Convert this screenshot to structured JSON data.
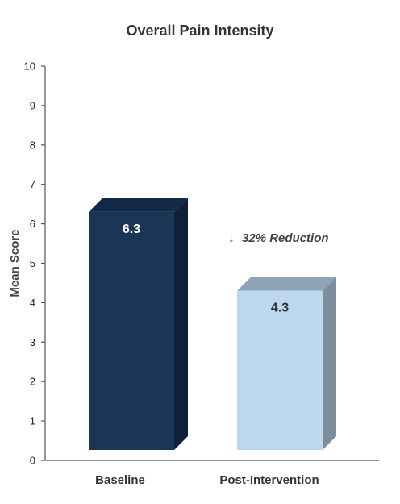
{
  "chart_data": {
    "type": "bar",
    "title": "Overall Pain Intensity",
    "xlabel": "",
    "ylabel": "Mean Score",
    "ylim": [
      0,
      10
    ],
    "yticks": [
      0,
      1,
      2,
      3,
      4,
      5,
      6,
      7,
      8,
      9,
      10
    ],
    "categories": [
      "Baseline",
      "Post-Intervention"
    ],
    "values": [
      6.3,
      4.3
    ],
    "data_labels": [
      "6.3",
      "4.3"
    ],
    "colors": {
      "Baseline": {
        "front": "#1b3556",
        "top": "#132a46",
        "side": "#0f2139",
        "label": "#ffffff"
      },
      "Post-Intervention": {
        "front": "#bdd7ee",
        "top": "#8fa3b6",
        "side": "#7d8d9b",
        "label": "#333333"
      }
    },
    "annotation": {
      "arrow": "↓",
      "arrow_color": "#22a64a",
      "text": "32% Reduction"
    },
    "grid": false,
    "legend": "none"
  }
}
